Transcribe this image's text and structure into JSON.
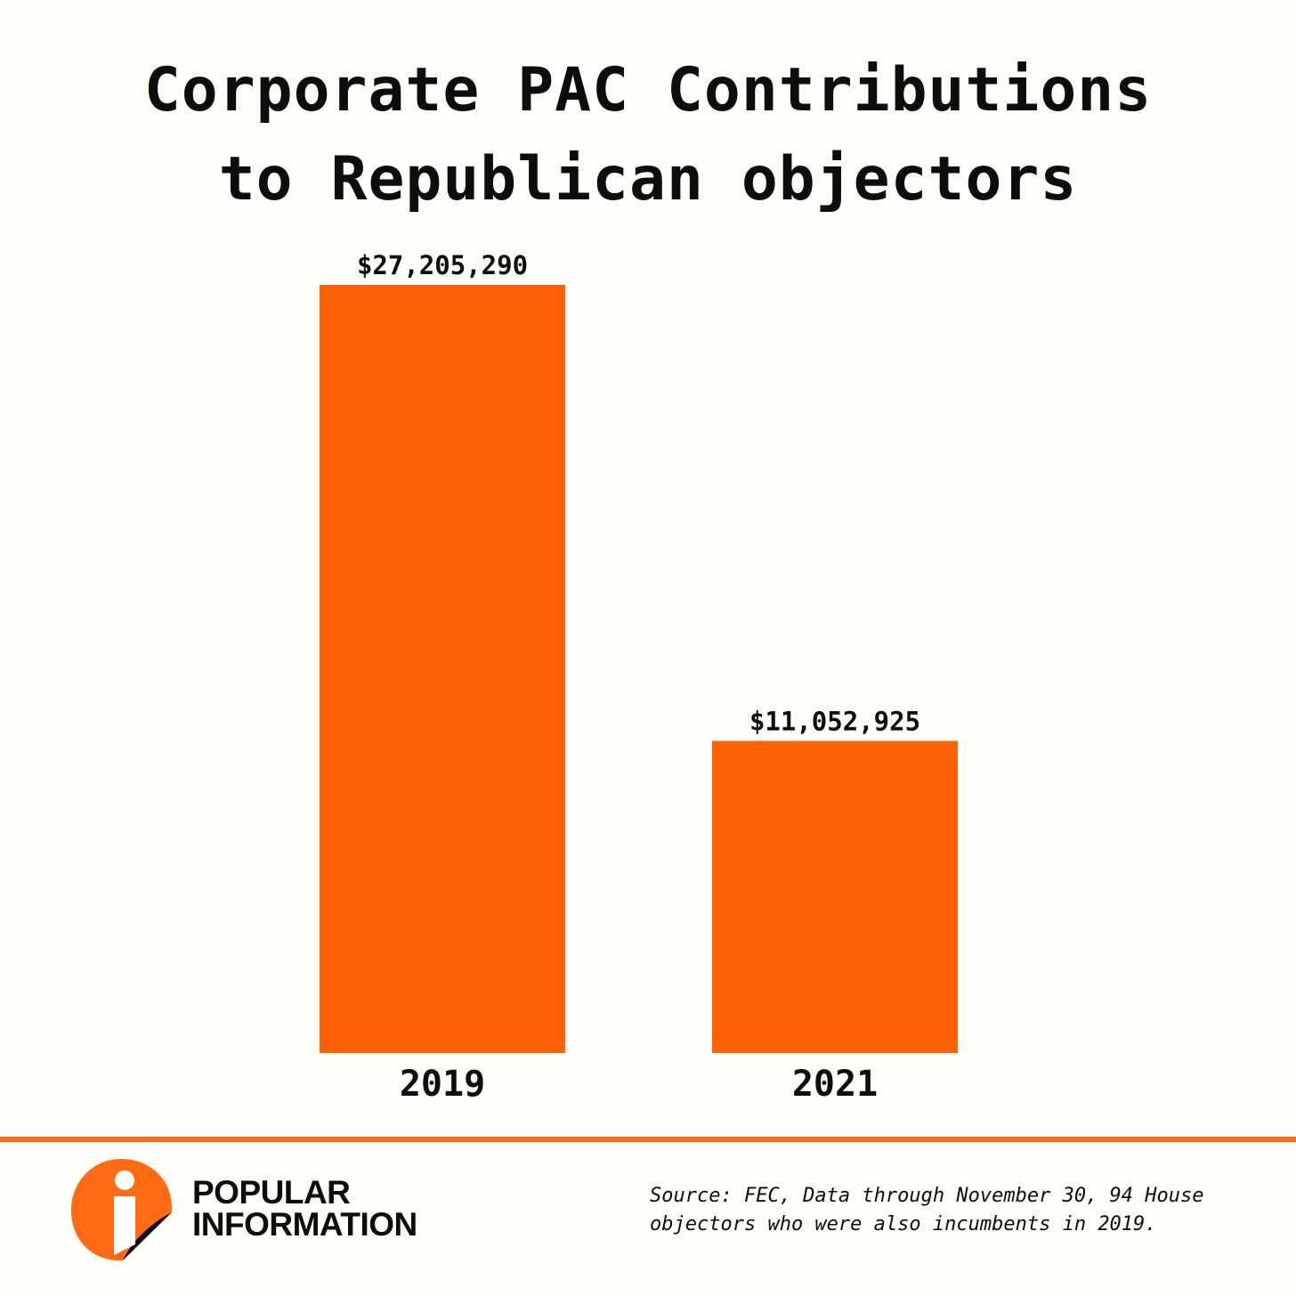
{
  "title_lines": [
    "Corporate PAC Contributions",
    "to Republican objectors"
  ],
  "chart_data": {
    "type": "bar",
    "categories": [
      "2019",
      "2021"
    ],
    "values": [
      27205290,
      11052925
    ],
    "value_labels": [
      "$27,205,290",
      "$11,052,925"
    ],
    "xlabel": "",
    "ylabel": "",
    "ylim": [
      0,
      27205290
    ],
    "grid": false,
    "legend": "none"
  },
  "footer": {
    "brand_lines": [
      "POPULAR",
      "INFORMATION"
    ],
    "source_lines": [
      "Source: FEC, Data through November 30, 94 House",
      "objectors who were also incumbents in 2019."
    ]
  },
  "colors": {
    "bar": "#fe6105",
    "accent": "#ff6a13",
    "background": "#fefdf7",
    "text": "#0d0d0d"
  },
  "icons": {
    "logo": "popular-information-logo-icon"
  }
}
